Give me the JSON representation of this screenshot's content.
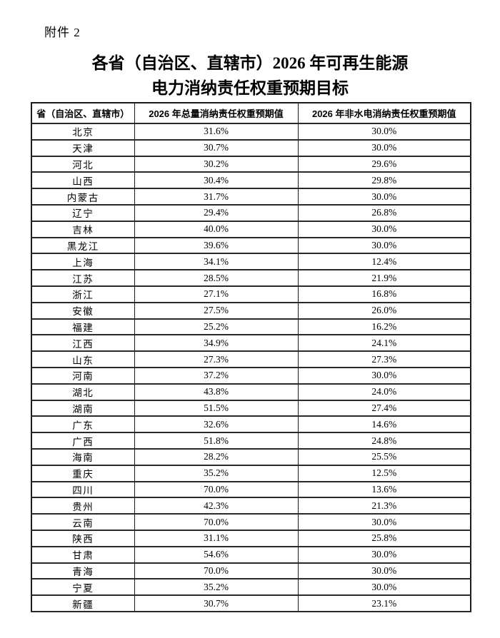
{
  "page": {
    "attachment_label": "附件 2",
    "title_line1": "各省（自治区、直辖市）2026 年可再生能源",
    "title_line2": "电力消纳责任权重预期目标"
  },
  "table": {
    "headers": {
      "province": "省（自治区、直辖市）",
      "total": "2026 年总量消纳责任权重预期值",
      "non_hydro": "2026 年非水电消纳责任权重预期值"
    },
    "rows": [
      {
        "province": "北京",
        "total": "31.6%",
        "non_hydro": "30.0%"
      },
      {
        "province": "天津",
        "total": "30.7%",
        "non_hydro": "30.0%"
      },
      {
        "province": "河北",
        "total": "30.2%",
        "non_hydro": "29.6%"
      },
      {
        "province": "山西",
        "total": "30.4%",
        "non_hydro": "29.8%"
      },
      {
        "province": "内蒙古",
        "total": "31.7%",
        "non_hydro": "30.0%"
      },
      {
        "province": "辽宁",
        "total": "29.4%",
        "non_hydro": "26.8%"
      },
      {
        "province": "吉林",
        "total": "40.0%",
        "non_hydro": "30.0%"
      },
      {
        "province": "黑龙江",
        "total": "39.6%",
        "non_hydro": "30.0%"
      },
      {
        "province": "上海",
        "total": "34.1%",
        "non_hydro": "12.4%"
      },
      {
        "province": "江苏",
        "total": "28.5%",
        "non_hydro": "21.9%"
      },
      {
        "province": "浙江",
        "total": "27.1%",
        "non_hydro": "16.8%"
      },
      {
        "province": "安徽",
        "total": "27.5%",
        "non_hydro": "26.0%"
      },
      {
        "province": "福建",
        "total": "25.2%",
        "non_hydro": "16.2%"
      },
      {
        "province": "江西",
        "total": "34.9%",
        "non_hydro": "24.1%"
      },
      {
        "province": "山东",
        "total": "27.3%",
        "non_hydro": "27.3%"
      },
      {
        "province": "河南",
        "total": "37.2%",
        "non_hydro": "30.0%"
      },
      {
        "province": "湖北",
        "total": "43.8%",
        "non_hydro": "24.0%"
      },
      {
        "province": "湖南",
        "total": "51.5%",
        "non_hydro": "27.4%"
      },
      {
        "province": "广东",
        "total": "32.6%",
        "non_hydro": "14.6%"
      },
      {
        "province": "广西",
        "total": "51.8%",
        "non_hydro": "24.8%"
      },
      {
        "province": "海南",
        "total": "28.2%",
        "non_hydro": "25.5%"
      },
      {
        "province": "重庆",
        "total": "35.2%",
        "non_hydro": "12.5%"
      },
      {
        "province": "四川",
        "total": "70.0%",
        "non_hydro": "13.6%"
      },
      {
        "province": "贵州",
        "total": "42.3%",
        "non_hydro": "21.3%"
      },
      {
        "province": "云南",
        "total": "70.0%",
        "non_hydro": "30.0%"
      },
      {
        "province": "陕西",
        "total": "31.1%",
        "non_hydro": "25.8%"
      },
      {
        "province": "甘肃",
        "total": "54.6%",
        "non_hydro": "30.0%"
      },
      {
        "province": "青海",
        "total": "70.0%",
        "non_hydro": "30.0%"
      },
      {
        "province": "宁夏",
        "total": "35.2%",
        "non_hydro": "30.0%"
      },
      {
        "province": "新疆",
        "total": "30.7%",
        "non_hydro": "23.1%"
      }
    ]
  }
}
